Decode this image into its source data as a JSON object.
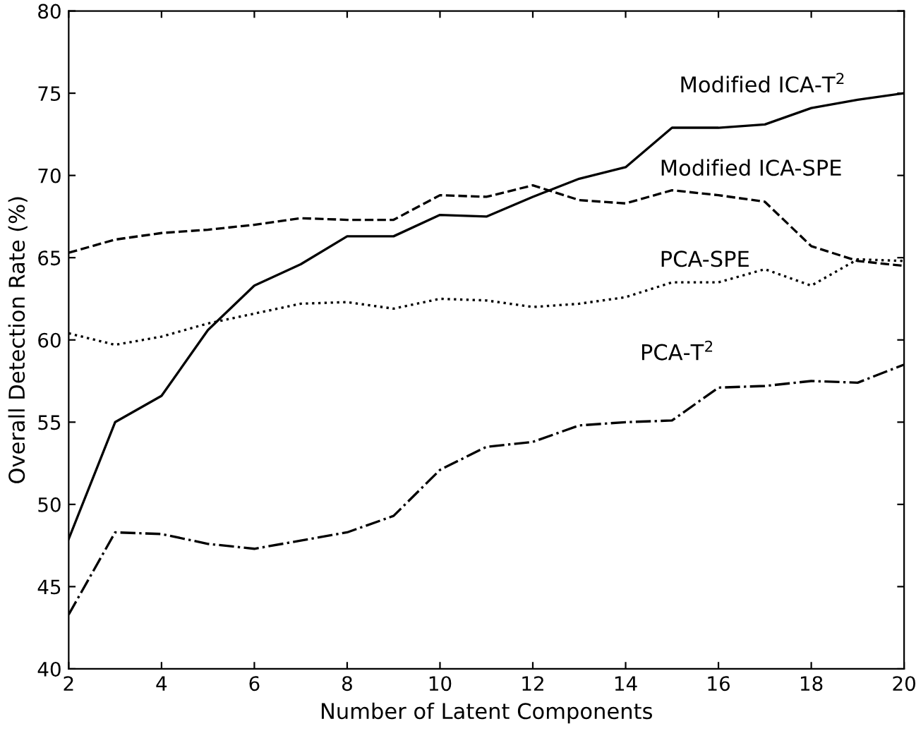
{
  "chart_data": {
    "type": "line",
    "xlabel": "Number of Latent Components",
    "ylabel": "Overall Detection Rate (%)",
    "x": [
      2,
      3,
      4,
      5,
      6,
      7,
      8,
      9,
      10,
      11,
      12,
      13,
      14,
      15,
      16,
      17,
      18,
      19,
      20
    ],
    "series": [
      {
        "name": "Modified ICA-T$^{2}$",
        "color": "#000000",
        "line_style": "solid",
        "values": [
          47.9,
          55,
          56.6,
          60.6,
          63.3,
          64.6,
          66.3,
          66.3,
          67.6,
          67.5,
          68.7,
          69.8,
          70.5,
          72.9,
          72.9,
          73.1,
          74.1,
          74.6,
          75.0
        ]
      },
      {
        "name": "Modified ICA-SPE",
        "color": "#000000",
        "line_style": "dashed",
        "values": [
          65.3,
          66.1,
          66.5,
          66.7,
          67.0,
          67.4,
          67.3,
          67.3,
          68.8,
          68.7,
          69.4,
          68.5,
          68.3,
          69.1,
          68.8,
          68.4,
          65.7,
          64.8,
          64.5
        ]
      },
      {
        "name": "PCA-SPE",
        "color": "#000000",
        "line_style": "dotted",
        "values": [
          60.4,
          59.7,
          60.2,
          61.0,
          61.6,
          62.2,
          62.3,
          61.9,
          62.5,
          62.4,
          62.0,
          62.2,
          62.6,
          63.5,
          63.5,
          64.3,
          63.3,
          64.9,
          64.8
        ]
      },
      {
        "name": "PCA-T$^{2}$",
        "color": "#000000",
        "line_style": "dashdot",
        "values": [
          43.3,
          48.3,
          48.2,
          47.6,
          47.3,
          47.8,
          48.3,
          49.3,
          52.1,
          53.5,
          53.8,
          54.8,
          55.0,
          55.1,
          57.1,
          57.2,
          57.5,
          57.4,
          58.5
        ]
      }
    ],
    "xlim": [
      2,
      20
    ],
    "xticks": [
      2,
      4,
      6,
      8,
      10,
      12,
      14,
      16,
      18,
      20
    ],
    "ylim": [
      40,
      80
    ],
    "yticks": [
      40,
      45,
      50,
      55,
      60,
      65,
      70,
      75,
      80
    ],
    "grid": false,
    "legend": false,
    "marker": "none"
  }
}
